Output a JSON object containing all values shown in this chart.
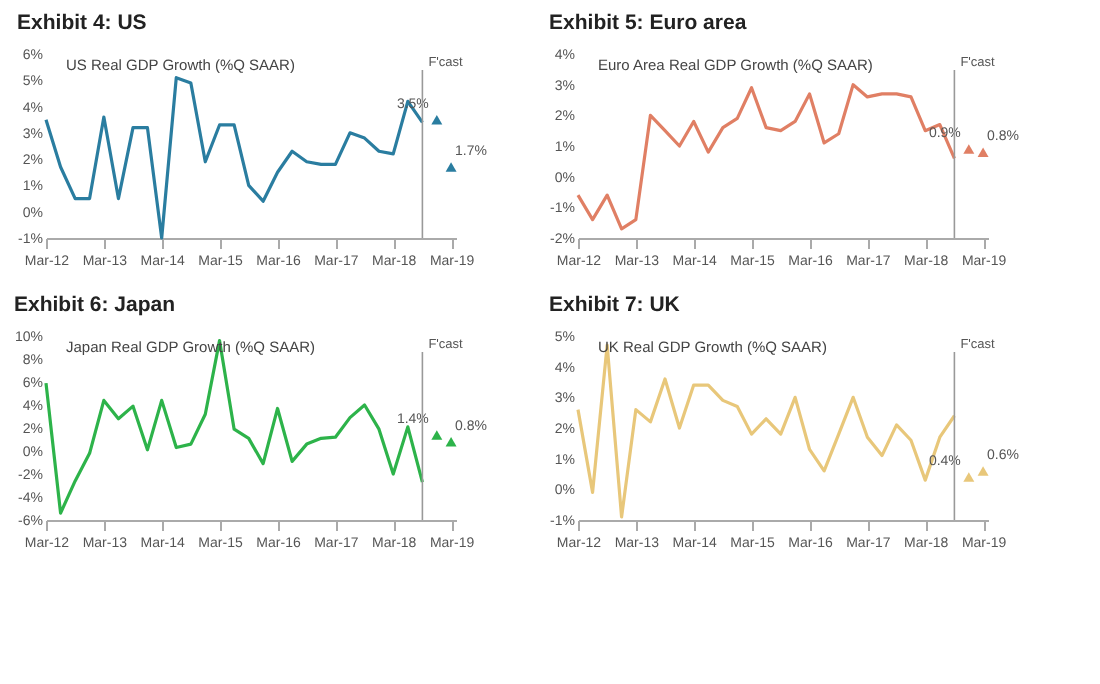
{
  "chart_data": [
    {
      "type": "line",
      "title": "Exhibit 4:  US",
      "subtitle": "US Real GDP Growth (%Q SAAR)",
      "x": [
        "2012-03",
        "2012-06",
        "2012-09",
        "2012-12",
        "2013-03",
        "2013-06",
        "2013-09",
        "2013-12",
        "2014-03",
        "2014-06",
        "2014-09",
        "2014-12",
        "2015-03",
        "2015-06",
        "2015-09",
        "2015-12",
        "2016-03",
        "2016-06",
        "2016-09",
        "2016-12",
        "2017-03",
        "2017-06",
        "2017-09",
        "2017-12",
        "2018-03",
        "2018-06",
        "2018-09"
      ],
      "series": [
        {
          "color": "#2a7da0",
          "values": [
            3.5,
            1.7,
            0.5,
            0.5,
            3.6,
            0.5,
            3.2,
            3.2,
            -1.0,
            5.1,
            4.9,
            1.9,
            3.3,
            3.3,
            1.0,
            0.4,
            1.5,
            2.3,
            1.9,
            1.8,
            1.8,
            3.0,
            2.8,
            2.3,
            2.2,
            4.2,
            3.4
          ]
        },
        {
          "type": "scatter",
          "marker": "triangle",
          "color": "#2a7da0",
          "x": [
            "2018-12",
            "2019-03"
          ],
          "values": [
            3.5,
            1.7
          ],
          "value_labels": [
            "3.5%",
            "1.7%"
          ]
        }
      ],
      "xlim": [
        "2012-03",
        "2019-04"
      ],
      "xticks": [
        {
          "value": "2012-03",
          "label": "Mar-12"
        },
        {
          "value": "2013-03",
          "label": "Mar-13"
        },
        {
          "value": "2014-03",
          "label": "Mar-14"
        },
        {
          "value": "2015-03",
          "label": "Mar-15"
        },
        {
          "value": "2016-03",
          "label": "Mar-16"
        },
        {
          "value": "2017-03",
          "label": "Mar-17"
        },
        {
          "value": "2018-03",
          "label": "Mar-18"
        },
        {
          "value": "2019-03",
          "label": "Mar-19"
        }
      ],
      "ylim": [
        -1,
        6
      ],
      "yticks": [
        {
          "value": -1,
          "label": "-1%"
        },
        {
          "value": 0,
          "label": "0%"
        },
        {
          "value": 1,
          "label": "1%"
        },
        {
          "value": 2,
          "label": "2%"
        },
        {
          "value": 3,
          "label": "3%"
        },
        {
          "value": 4,
          "label": "4%"
        },
        {
          "value": 5,
          "label": "5%"
        },
        {
          "value": 6,
          "label": "6%"
        }
      ],
      "ref_lines": [
        {
          "axis": "x",
          "value": "2018-09",
          "label": "F'cast",
          "color": "#999999"
        }
      ],
      "grid": false
    },
    {
      "type": "line",
      "title": "Exhibit 5:  Euro area",
      "subtitle": "Euro Area Real GDP Growth (%Q SAAR)",
      "x": [
        "2012-03",
        "2012-06",
        "2012-09",
        "2012-12",
        "2013-03",
        "2013-06",
        "2013-09",
        "2013-12",
        "2014-03",
        "2014-06",
        "2014-09",
        "2014-12",
        "2015-03",
        "2015-06",
        "2015-09",
        "2015-12",
        "2016-03",
        "2016-06",
        "2016-09",
        "2016-12",
        "2017-03",
        "2017-06",
        "2017-09",
        "2017-12",
        "2018-03",
        "2018-06",
        "2018-09"
      ],
      "series": [
        {
          "color": "#e07f64",
          "values": [
            -0.6,
            -1.4,
            -0.6,
            -1.7,
            -1.4,
            2.0,
            1.5,
            1.0,
            1.8,
            0.8,
            1.6,
            1.9,
            2.9,
            1.6,
            1.5,
            1.8,
            2.7,
            1.1,
            1.4,
            3.0,
            2.6,
            2.7,
            2.7,
            2.6,
            1.5,
            1.7,
            0.6
          ]
        },
        {
          "type": "scatter",
          "marker": "triangle",
          "color": "#e07f64",
          "x": [
            "2018-12",
            "2019-03"
          ],
          "values": [
            0.9,
            0.8
          ],
          "value_labels": [
            "0.9%",
            "0.8%"
          ]
        }
      ],
      "xlim": [
        "2012-03",
        "2019-04"
      ],
      "xticks": [
        {
          "value": "2012-03",
          "label": "Mar-12"
        },
        {
          "value": "2013-03",
          "label": "Mar-13"
        },
        {
          "value": "2014-03",
          "label": "Mar-14"
        },
        {
          "value": "2015-03",
          "label": "Mar-15"
        },
        {
          "value": "2016-03",
          "label": "Mar-16"
        },
        {
          "value": "2017-03",
          "label": "Mar-17"
        },
        {
          "value": "2018-03",
          "label": "Mar-18"
        },
        {
          "value": "2019-03",
          "label": "Mar-19"
        }
      ],
      "ylim": [
        -2,
        4
      ],
      "yticks": [
        {
          "value": -2,
          "label": "-2%"
        },
        {
          "value": -1,
          "label": "-1%"
        },
        {
          "value": 0,
          "label": "0%"
        },
        {
          "value": 1,
          "label": "1%"
        },
        {
          "value": 2,
          "label": "2%"
        },
        {
          "value": 3,
          "label": "3%"
        },
        {
          "value": 4,
          "label": "4%"
        }
      ],
      "ref_lines": [
        {
          "axis": "x",
          "value": "2018-09",
          "label": "F'cast",
          "color": "#999999"
        }
      ],
      "grid": false
    },
    {
      "type": "line",
      "title": "Exhibit 6:  Japan",
      "subtitle": "Japan Real GDP Growth (%Q SAAR)",
      "x": [
        "2012-03",
        "2012-06",
        "2012-09",
        "2012-12",
        "2013-03",
        "2013-06",
        "2013-09",
        "2013-12",
        "2014-03",
        "2014-06",
        "2014-09",
        "2014-12",
        "2015-03",
        "2015-06",
        "2015-09",
        "2015-12",
        "2016-03",
        "2016-06",
        "2016-09",
        "2016-12",
        "2017-03",
        "2017-06",
        "2017-09",
        "2017-12",
        "2018-03",
        "2018-06",
        "2018-09"
      ],
      "series": [
        {
          "color": "#2db34a",
          "values": [
            5.9,
            -5.4,
            -2.6,
            -0.2,
            4.4,
            2.8,
            3.9,
            0.1,
            4.4,
            0.3,
            0.6,
            3.2,
            9.6,
            1.9,
            1.1,
            -1.1,
            3.7,
            -0.9,
            0.6,
            1.1,
            1.2,
            2.9,
            4.0,
            1.9,
            -2.0,
            2.1,
            -2.7
          ]
        },
        {
          "type": "scatter",
          "marker": "triangle",
          "color": "#2db34a",
          "x": [
            "2018-12",
            "2019-03"
          ],
          "values": [
            1.4,
            0.8
          ],
          "value_labels": [
            "1.4%",
            "0.8%"
          ]
        }
      ],
      "xlim": [
        "2012-03",
        "2019-04"
      ],
      "xticks": [
        {
          "value": "2012-03",
          "label": "Mar-12"
        },
        {
          "value": "2013-03",
          "label": "Mar-13"
        },
        {
          "value": "2014-03",
          "label": "Mar-14"
        },
        {
          "value": "2015-03",
          "label": "Mar-15"
        },
        {
          "value": "2016-03",
          "label": "Mar-16"
        },
        {
          "value": "2017-03",
          "label": "Mar-17"
        },
        {
          "value": "2018-03",
          "label": "Mar-18"
        },
        {
          "value": "2019-03",
          "label": "Mar-19"
        }
      ],
      "ylim": [
        -6,
        10
      ],
      "yticks": [
        {
          "value": -6,
          "label": "-6%"
        },
        {
          "value": -4,
          "label": "-4%"
        },
        {
          "value": -2,
          "label": "-2%"
        },
        {
          "value": 0,
          "label": "0%"
        },
        {
          "value": 2,
          "label": "2%"
        },
        {
          "value": 4,
          "label": "4%"
        },
        {
          "value": 6,
          "label": "6%"
        },
        {
          "value": 8,
          "label": "8%"
        },
        {
          "value": 10,
          "label": "10%"
        }
      ],
      "ref_lines": [
        {
          "axis": "x",
          "value": "2018-09",
          "label": "F'cast",
          "color": "#999999"
        }
      ],
      "grid": false
    },
    {
      "type": "line",
      "title": "Exhibit 7:  UK",
      "subtitle": "UK Real GDP Growth (%Q SAAR)",
      "x": [
        "2012-03",
        "2012-06",
        "2012-09",
        "2012-12",
        "2013-03",
        "2013-06",
        "2013-09",
        "2013-12",
        "2014-03",
        "2014-06",
        "2014-09",
        "2014-12",
        "2015-03",
        "2015-06",
        "2015-09",
        "2015-12",
        "2016-03",
        "2016-06",
        "2016-09",
        "2016-12",
        "2017-03",
        "2017-06",
        "2017-09",
        "2017-12",
        "2018-03",
        "2018-06",
        "2018-09"
      ],
      "series": [
        {
          "color": "#e8c77a",
          "values": [
            2.6,
            -0.1,
            4.7,
            -0.9,
            2.6,
            2.2,
            3.6,
            2.0,
            3.4,
            3.4,
            2.9,
            2.7,
            1.8,
            2.3,
            1.8,
            3.0,
            1.3,
            0.6,
            1.8,
            3.0,
            1.7,
            1.1,
            2.1,
            1.6,
            0.3,
            1.7,
            2.4
          ]
        },
        {
          "type": "scatter",
          "marker": "triangle",
          "color": "#e8c77a",
          "x": [
            "2018-12",
            "2019-03"
          ],
          "values": [
            0.4,
            0.6
          ],
          "value_labels": [
            "0.4%",
            "0.6%"
          ]
        }
      ],
      "xlim": [
        "2012-03",
        "2019-04"
      ],
      "xticks": [
        {
          "value": "2012-03",
          "label": "Mar-12"
        },
        {
          "value": "2013-03",
          "label": "Mar-13"
        },
        {
          "value": "2014-03",
          "label": "Mar-14"
        },
        {
          "value": "2015-03",
          "label": "Mar-15"
        },
        {
          "value": "2016-03",
          "label": "Mar-16"
        },
        {
          "value": "2017-03",
          "label": "Mar-17"
        },
        {
          "value": "2018-03",
          "label": "Mar-18"
        },
        {
          "value": "2019-03",
          "label": "Mar-19"
        }
      ],
      "ylim": [
        -1,
        5
      ],
      "yticks": [
        {
          "value": -1,
          "label": "-1%"
        },
        {
          "value": 0,
          "label": "0%"
        },
        {
          "value": 1,
          "label": "1%"
        },
        {
          "value": 2,
          "label": "2%"
        },
        {
          "value": 3,
          "label": "3%"
        },
        {
          "value": 4,
          "label": "4%"
        },
        {
          "value": 5,
          "label": "5%"
        }
      ],
      "ref_lines": [
        {
          "axis": "x",
          "value": "2018-09",
          "label": "F'cast",
          "color": "#999999"
        }
      ],
      "grid": false
    }
  ]
}
